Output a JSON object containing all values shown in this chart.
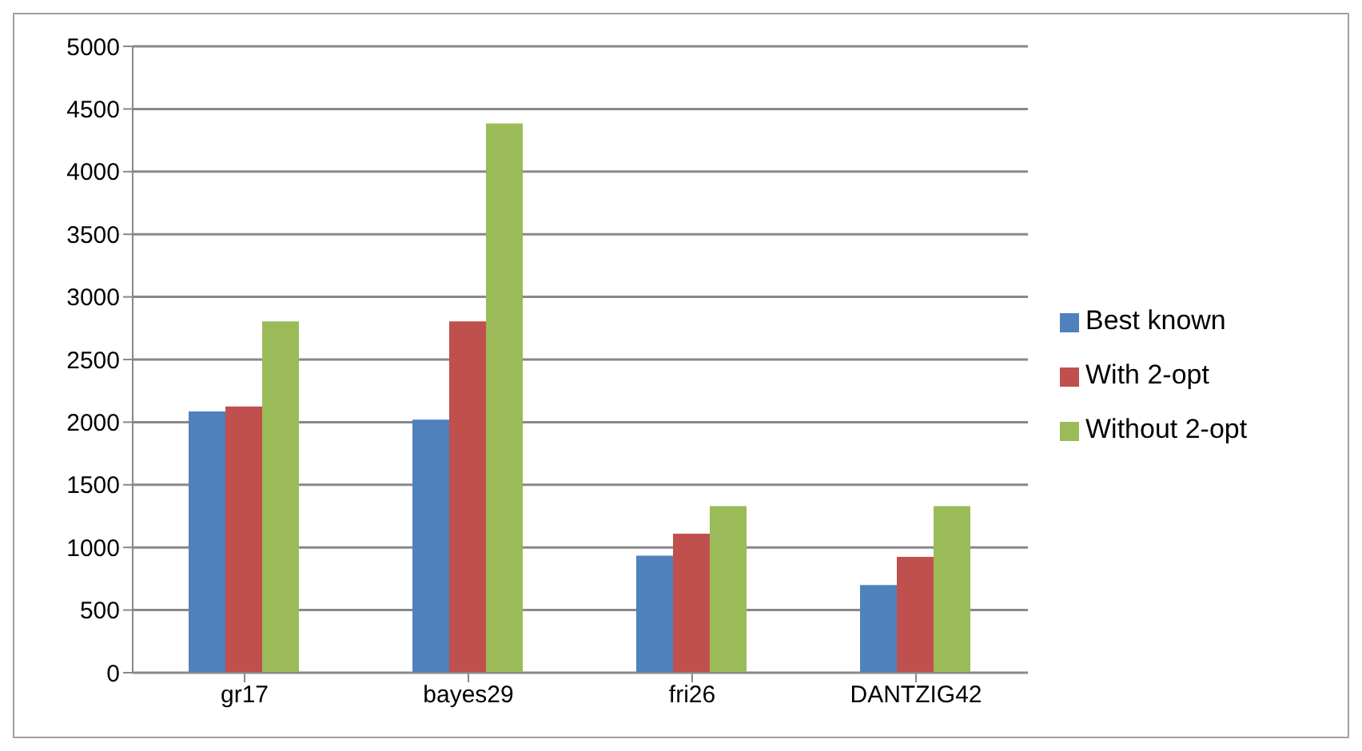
{
  "chart_data": {
    "type": "bar",
    "categories": [
      "gr17",
      "bayes29",
      "fri26",
      "DANTZIG42"
    ],
    "series": [
      {
        "name": "Best known",
        "color": "#4f81bd",
        "values": [
          2085,
          2020,
          935,
          700
        ]
      },
      {
        "name": "With 2-opt",
        "color": "#c0504d",
        "values": [
          2125,
          2805,
          1110,
          925
        ]
      },
      {
        "name": "Without 2-opt",
        "color": "#9bbb59",
        "values": [
          2805,
          4385,
          1330,
          1330
        ]
      }
    ],
    "ylim": [
      0,
      5000
    ],
    "yticks": [
      0,
      500,
      1000,
      1500,
      2000,
      2500,
      3000,
      3500,
      4000,
      4500,
      5000
    ],
    "grid": "y",
    "legend": "right"
  }
}
